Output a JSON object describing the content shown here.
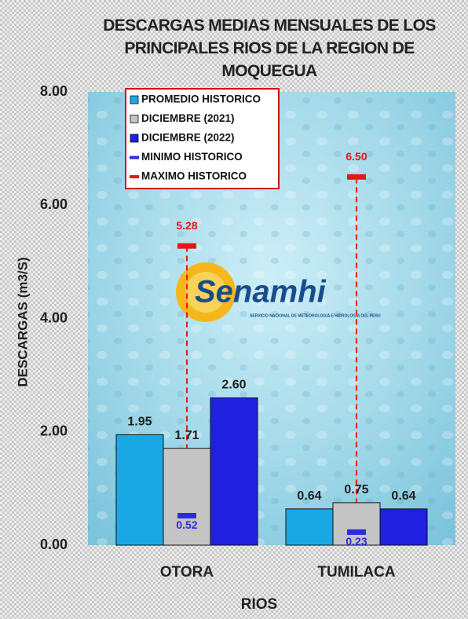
{
  "chart_data": {
    "type": "bar",
    "title": "DESCARGAS MEDIAS MENSUALES DE LOS PRINCIPALES RIOS DE LA REGION DE MOQUEGUA",
    "xlabel": "RIOS",
    "ylabel": "DESCARGAS  (m3/S)",
    "logo_text": "Senamhi",
    "logo_subtext": "SERVICIO NACIONAL DE METEOROLOGIA E HIDROLOGIA DEL PERU",
    "categories": [
      "OTORA",
      "TUMILACA"
    ],
    "series": [
      {
        "name": "PROMEDIO HISTORICO",
        "color": "#1aa8e4",
        "values": [
          1.95,
          0.64
        ],
        "value_labels": [
          "1.95",
          "0.64"
        ]
      },
      {
        "name": "DICIEMBRE (2021)",
        "color": "#c4c4c4",
        "values": [
          1.71,
          0.75
        ],
        "value_labels": [
          "1.71",
          "0.75"
        ]
      },
      {
        "name": "DICIEMBRE (2022)",
        "color": "#2020e0",
        "values": [
          2.6,
          0.64
        ],
        "value_labels": [
          "2.60",
          "0.64"
        ]
      },
      {
        "name": "MINIMO HISTORICO",
        "color": "#2a2ae8",
        "kind": "min",
        "values": [
          0.52,
          0.23
        ],
        "value_labels": [
          "0.52",
          "0.23"
        ]
      },
      {
        "name": "MAXIMO HISTORICO",
        "color": "#e81515",
        "kind": "max",
        "values": [
          5.28,
          6.5
        ],
        "value_labels": [
          "5.28",
          "6.50"
        ]
      }
    ],
    "ylim": [
      0,
      8
    ],
    "yticks": [
      {
        "value": 0,
        "label": "0.00"
      },
      {
        "value": 2,
        "label": "2.00"
      },
      {
        "value": 4,
        "label": "4.00"
      },
      {
        "value": 6,
        "label": "6.00"
      },
      {
        "value": 8,
        "label": "8.00"
      }
    ],
    "grid": false,
    "legend": "upper-left"
  }
}
